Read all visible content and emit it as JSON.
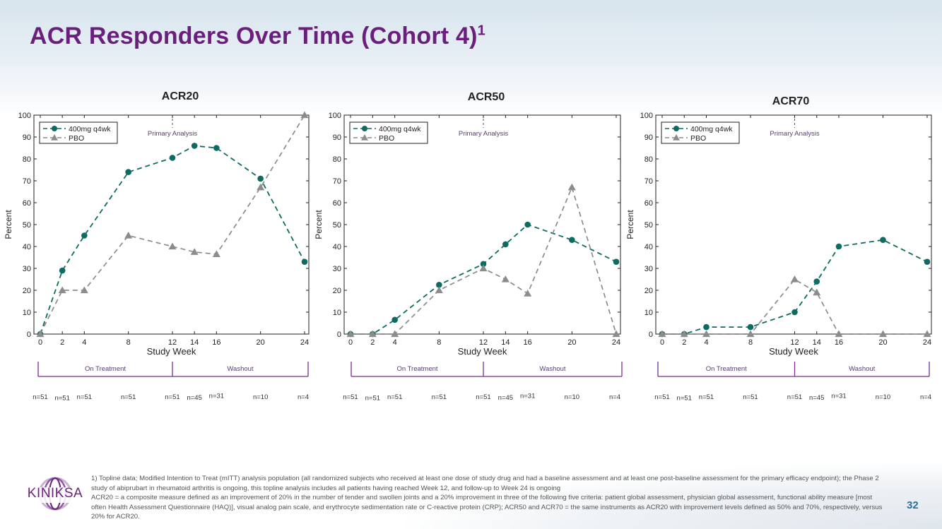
{
  "slide": {
    "title": "ACR Responders Over Time (Cohort 4)",
    "title_superscript": "1",
    "page_number": "32",
    "logo_text": "KINIKSA",
    "footnotes": [
      "1) Topline data; Modified Intention to Treat (mITT) analysis population (all randomized subjects who received at least one dose of study drug and had a baseline assessment and at least one post-baseline assessment for the primary efficacy endpoint); the Phase 2 study of abiprubart in rheumatoid arthritis is ongoing, this topline analysis includes all patients having reached Week 12, and follow-up to Week 24 is ongoing",
      "ACR20 = a composite measure defined as an improvement of 20% in the number of tender and swollen joints and a 20% improvement in three of the following five criteria: patient global assessment, physician global assessment, functional ability measure [most often Health Assessment Questionnaire (HAQ)], visual analog pain scale, and erythrocyte sedimentation rate or C-reactive protein (CRP); ACR50 and ACR70 = the same instruments as ACR20 with improvement levels defined as 50% and 70%, respectively, versus 20% for ACR20."
    ],
    "colors": {
      "title": "#6b1f7c",
      "series_400mg": "#0e6b61",
      "series_pbo": "#8c8c8c",
      "bracket": "#7b2f8c",
      "page_number": "#2c6f9a"
    }
  },
  "chart_data": [
    {
      "type": "line",
      "title": "ACR20",
      "xlabel": "Study Week",
      "ylabel": "Percent",
      "xlim": [
        0,
        24
      ],
      "ylim": [
        0,
        100
      ],
      "xticks": [
        0,
        2,
        4,
        8,
        12,
        14,
        16,
        20,
        24
      ],
      "yticks": [
        0,
        10,
        20,
        30,
        40,
        50,
        60,
        70,
        80,
        90,
        100
      ],
      "annotation": "Primary Analysis",
      "annotation_x": 12,
      "legend_position": "top-left",
      "periods": [
        {
          "label": "On Treatment",
          "from": 0,
          "to": 12
        },
        {
          "label": "Washout",
          "from": 12,
          "to": 24
        }
      ],
      "n_labels": [
        {
          "x": 0,
          "text": "n=51"
        },
        {
          "x": 2,
          "text": "n=51"
        },
        {
          "x": 4,
          "text": "n=51"
        },
        {
          "x": 8,
          "text": "n=51"
        },
        {
          "x": 12,
          "text": "n=51"
        },
        {
          "x": 14,
          "text": "n=45"
        },
        {
          "x": 16,
          "text": "n=31"
        },
        {
          "x": 20,
          "text": "n=10"
        },
        {
          "x": 24,
          "text": "n=4"
        }
      ],
      "series": [
        {
          "name": "400mg q4wk",
          "marker": "circle",
          "x": [
            0,
            2,
            4,
            8,
            12,
            14,
            16,
            20,
            24
          ],
          "values": [
            0,
            29,
            45,
            74,
            80.5,
            86,
            85,
            71,
            33
          ]
        },
        {
          "name": "PBO",
          "marker": "triangle",
          "x": [
            0,
            2,
            4,
            8,
            12,
            14,
            16,
            20,
            24
          ],
          "values": [
            0,
            20,
            20,
            45,
            40,
            37.5,
            36.5,
            67,
            100
          ]
        }
      ]
    },
    {
      "type": "line",
      "title": "ACR50",
      "xlabel": "Study Week",
      "ylabel": "Percent",
      "xlim": [
        0,
        24
      ],
      "ylim": [
        0,
        100
      ],
      "xticks": [
        0,
        2,
        4,
        8,
        12,
        14,
        16,
        20,
        24
      ],
      "yticks": [
        0,
        10,
        20,
        30,
        40,
        50,
        60,
        70,
        80,
        90,
        100
      ],
      "annotation": "Primary Analysis",
      "annotation_x": 12,
      "legend_position": "top-left",
      "periods": [
        {
          "label": "On Treatment",
          "from": 0,
          "to": 12
        },
        {
          "label": "Washout",
          "from": 12,
          "to": 24
        }
      ],
      "n_labels": [
        {
          "x": 0,
          "text": "n=51"
        },
        {
          "x": 2,
          "text": "n=51"
        },
        {
          "x": 4,
          "text": "n=51"
        },
        {
          "x": 8,
          "text": "n=51"
        },
        {
          "x": 12,
          "text": "n=51"
        },
        {
          "x": 14,
          "text": "n=45"
        },
        {
          "x": 16,
          "text": "n=31"
        },
        {
          "x": 20,
          "text": "n=10"
        },
        {
          "x": 24,
          "text": "n=4"
        }
      ],
      "series": [
        {
          "name": "400mg q4wk",
          "marker": "circle",
          "x": [
            0,
            2,
            4,
            8,
            12,
            14,
            16,
            20,
            24
          ],
          "values": [
            0,
            0,
            6.5,
            22.5,
            32,
            41,
            50,
            43,
            33
          ]
        },
        {
          "name": "PBO",
          "marker": "triangle",
          "x": [
            0,
            2,
            4,
            8,
            12,
            14,
            16,
            20,
            24
          ],
          "values": [
            0,
            0,
            0,
            20,
            30,
            25,
            18.5,
            67,
            0
          ]
        }
      ]
    },
    {
      "type": "line",
      "title": "ACR70",
      "xlabel": "Study Week",
      "ylabel": "Percent",
      "xlim": [
        0,
        24
      ],
      "ylim": [
        0,
        100
      ],
      "xticks": [
        0,
        2,
        4,
        8,
        12,
        14,
        16,
        20,
        24
      ],
      "yticks": [
        0,
        10,
        20,
        30,
        40,
        50,
        60,
        70,
        80,
        90,
        100
      ],
      "annotation": "Primary Analysis",
      "annotation_x": 12,
      "legend_position": "top-left",
      "periods": [
        {
          "label": "On Treatment",
          "from": 0,
          "to": 12
        },
        {
          "label": "Washout",
          "from": 12,
          "to": 24
        }
      ],
      "n_labels": [
        {
          "x": 0,
          "text": "n=51"
        },
        {
          "x": 2,
          "text": "n=51"
        },
        {
          "x": 4,
          "text": "n=51"
        },
        {
          "x": 8,
          "text": "n=51"
        },
        {
          "x": 12,
          "text": "n=51"
        },
        {
          "x": 14,
          "text": "n=45"
        },
        {
          "x": 16,
          "text": "n=31"
        },
        {
          "x": 20,
          "text": "n=10"
        },
        {
          "x": 24,
          "text": "n=4"
        }
      ],
      "series": [
        {
          "name": "400mg q4wk",
          "marker": "circle",
          "x": [
            0,
            2,
            4,
            8,
            12,
            14,
            16,
            20,
            24
          ],
          "values": [
            0,
            0,
            3.2,
            3.2,
            10,
            24,
            40,
            43,
            33
          ]
        },
        {
          "name": "PBO",
          "marker": "triangle",
          "x": [
            0,
            2,
            4,
            8,
            12,
            14,
            16,
            20,
            24
          ],
          "values": [
            0,
            0,
            0,
            0,
            25,
            19,
            0,
            0,
            0
          ]
        }
      ]
    }
  ]
}
